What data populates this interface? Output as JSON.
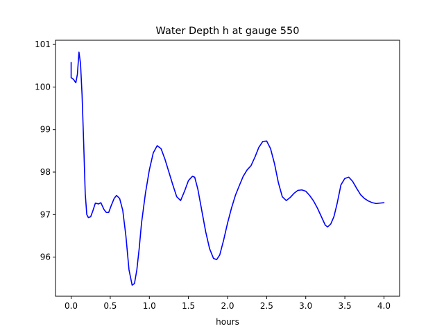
{
  "chart_data": {
    "type": "line",
    "title": "Water Depth h at gauge 550",
    "xlabel": "hours",
    "ylabel": "",
    "xlim": [
      -0.2,
      4.2
    ],
    "ylim": [
      95.08,
      101.1
    ],
    "xticks": [
      0.0,
      0.5,
      1.0,
      1.5,
      2.0,
      2.5,
      3.0,
      3.5,
      4.0
    ],
    "xtick_labels": [
      "0.0",
      "0.5",
      "1.0",
      "1.5",
      "2.0",
      "2.5",
      "3.0",
      "3.5",
      "4.0"
    ],
    "yticks": [
      96,
      97,
      98,
      99,
      100,
      101
    ],
    "ytick_labels": [
      "96",
      "97",
      "98",
      "99",
      "100",
      "101"
    ],
    "grid": false,
    "legend": "none",
    "series": [
      {
        "color": "#0000ff",
        "x": [
          0.0,
          0.0,
          0.03,
          0.06,
          0.08,
          0.1,
          0.12,
          0.14,
          0.16,
          0.18,
          0.2,
          0.22,
          0.25,
          0.28,
          0.31,
          0.35,
          0.38,
          0.42,
          0.45,
          0.48,
          0.51,
          0.55,
          0.58,
          0.62,
          0.66,
          0.7,
          0.74,
          0.78,
          0.81,
          0.84,
          0.87,
          0.9,
          0.95,
          1.0,
          1.05,
          1.1,
          1.15,
          1.2,
          1.25,
          1.3,
          1.35,
          1.4,
          1.45,
          1.5,
          1.55,
          1.58,
          1.62,
          1.67,
          1.72,
          1.77,
          1.82,
          1.86,
          1.9,
          1.95,
          2.0,
          2.05,
          2.1,
          2.15,
          2.2,
          2.25,
          2.3,
          2.35,
          2.4,
          2.45,
          2.5,
          2.55,
          2.6,
          2.65,
          2.7,
          2.75,
          2.8,
          2.85,
          2.9,
          2.95,
          3.0,
          3.05,
          3.1,
          3.15,
          3.2,
          3.25,
          3.28,
          3.32,
          3.36,
          3.4,
          3.45,
          3.5,
          3.55,
          3.6,
          3.65,
          3.7,
          3.75,
          3.8,
          3.85,
          3.9,
          3.95,
          4.0
        ],
        "values": [
          100.58,
          100.22,
          100.18,
          100.1,
          100.3,
          100.82,
          100.55,
          99.8,
          98.7,
          97.5,
          97.0,
          96.93,
          96.95,
          97.1,
          97.27,
          97.25,
          97.28,
          97.12,
          97.05,
          97.05,
          97.2,
          97.38,
          97.45,
          97.38,
          97.1,
          96.5,
          95.7,
          95.34,
          95.38,
          95.7,
          96.2,
          96.8,
          97.5,
          98.05,
          98.45,
          98.62,
          98.55,
          98.3,
          98.0,
          97.7,
          97.42,
          97.33,
          97.55,
          97.8,
          97.9,
          97.88,
          97.6,
          97.1,
          96.6,
          96.2,
          95.97,
          95.94,
          96.05,
          96.4,
          96.8,
          97.15,
          97.45,
          97.68,
          97.9,
          98.05,
          98.15,
          98.35,
          98.58,
          98.72,
          98.73,
          98.55,
          98.2,
          97.75,
          97.42,
          97.33,
          97.4,
          97.5,
          97.57,
          97.58,
          97.55,
          97.45,
          97.32,
          97.15,
          96.95,
          96.75,
          96.71,
          96.78,
          96.95,
          97.25,
          97.7,
          97.85,
          97.88,
          97.78,
          97.62,
          97.47,
          97.38,
          97.32,
          97.28,
          97.26,
          97.27,
          97.28
        ]
      }
    ]
  }
}
